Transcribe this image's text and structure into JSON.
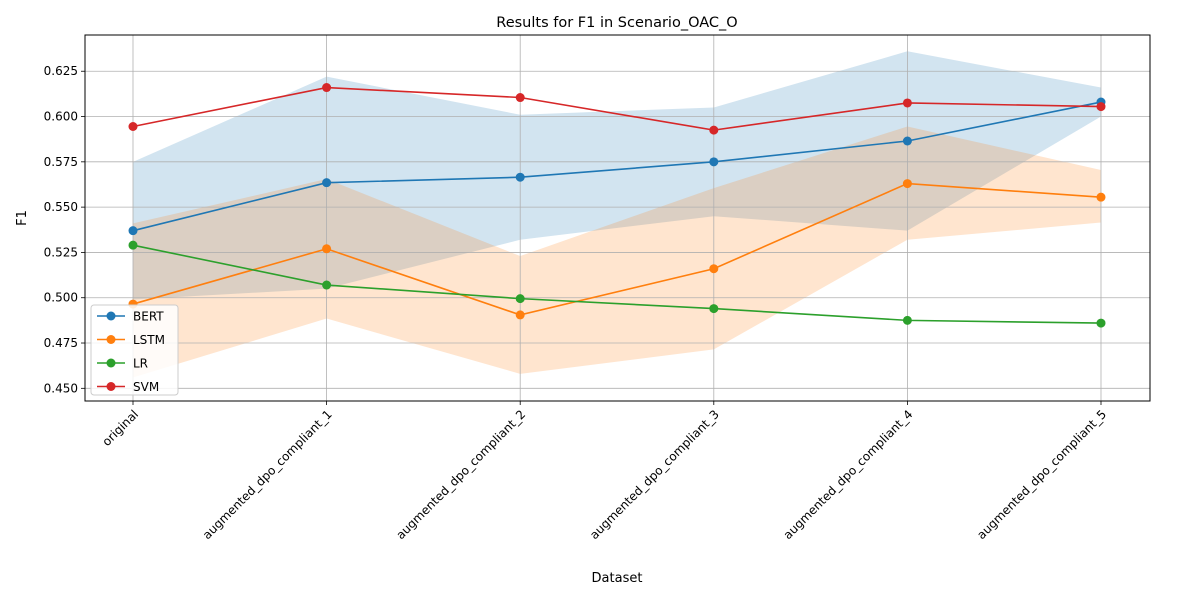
{
  "chart_data": {
    "type": "line",
    "title": "Results for F1 in Scenario_OAC_O",
    "xlabel": "Dataset",
    "ylabel": "F1",
    "categories": [
      "original",
      "augmented_dpo_compliant_1",
      "augmented_dpo_compliant_2",
      "augmented_dpo_compliant_3",
      "augmented_dpo_compliant_4",
      "augmented_dpo_compliant_5"
    ],
    "ylim": [
      0.443,
      0.645
    ],
    "yticks": [
      "0.450",
      "0.475",
      "0.500",
      "0.525",
      "0.550",
      "0.575",
      "0.600",
      "0.625"
    ],
    "grid": true,
    "legend_position": "lower-left",
    "series": [
      {
        "name": "BERT",
        "color": "#1f77b4",
        "values": [
          0.537,
          0.5635,
          0.5665,
          0.575,
          0.5865,
          0.608
        ],
        "band": {
          "upper": [
            0.575,
            0.622,
            0.601,
            0.605,
            0.636,
            0.616
          ],
          "lower": [
            0.499,
            0.505,
            0.532,
            0.545,
            0.537,
            0.6
          ]
        }
      },
      {
        "name": "LSTM",
        "color": "#ff7f0e",
        "values": [
          0.4965,
          0.527,
          0.4905,
          0.516,
          0.563,
          0.5555
        ],
        "band": {
          "upper": [
            0.541,
            0.5655,
            0.523,
            0.5605,
            0.5945,
            0.5705
          ],
          "lower": [
            0.456,
            0.4885,
            0.458,
            0.4715,
            0.532,
            0.5415
          ]
        }
      },
      {
        "name": "LR",
        "color": "#2ca02c",
        "values": [
          0.529,
          0.507,
          0.4995,
          0.494,
          0.4875,
          0.486
        ]
      },
      {
        "name": "SVM",
        "color": "#d62728",
        "values": [
          0.5945,
          0.616,
          0.6105,
          0.5925,
          0.6075,
          0.6055
        ]
      }
    ]
  }
}
